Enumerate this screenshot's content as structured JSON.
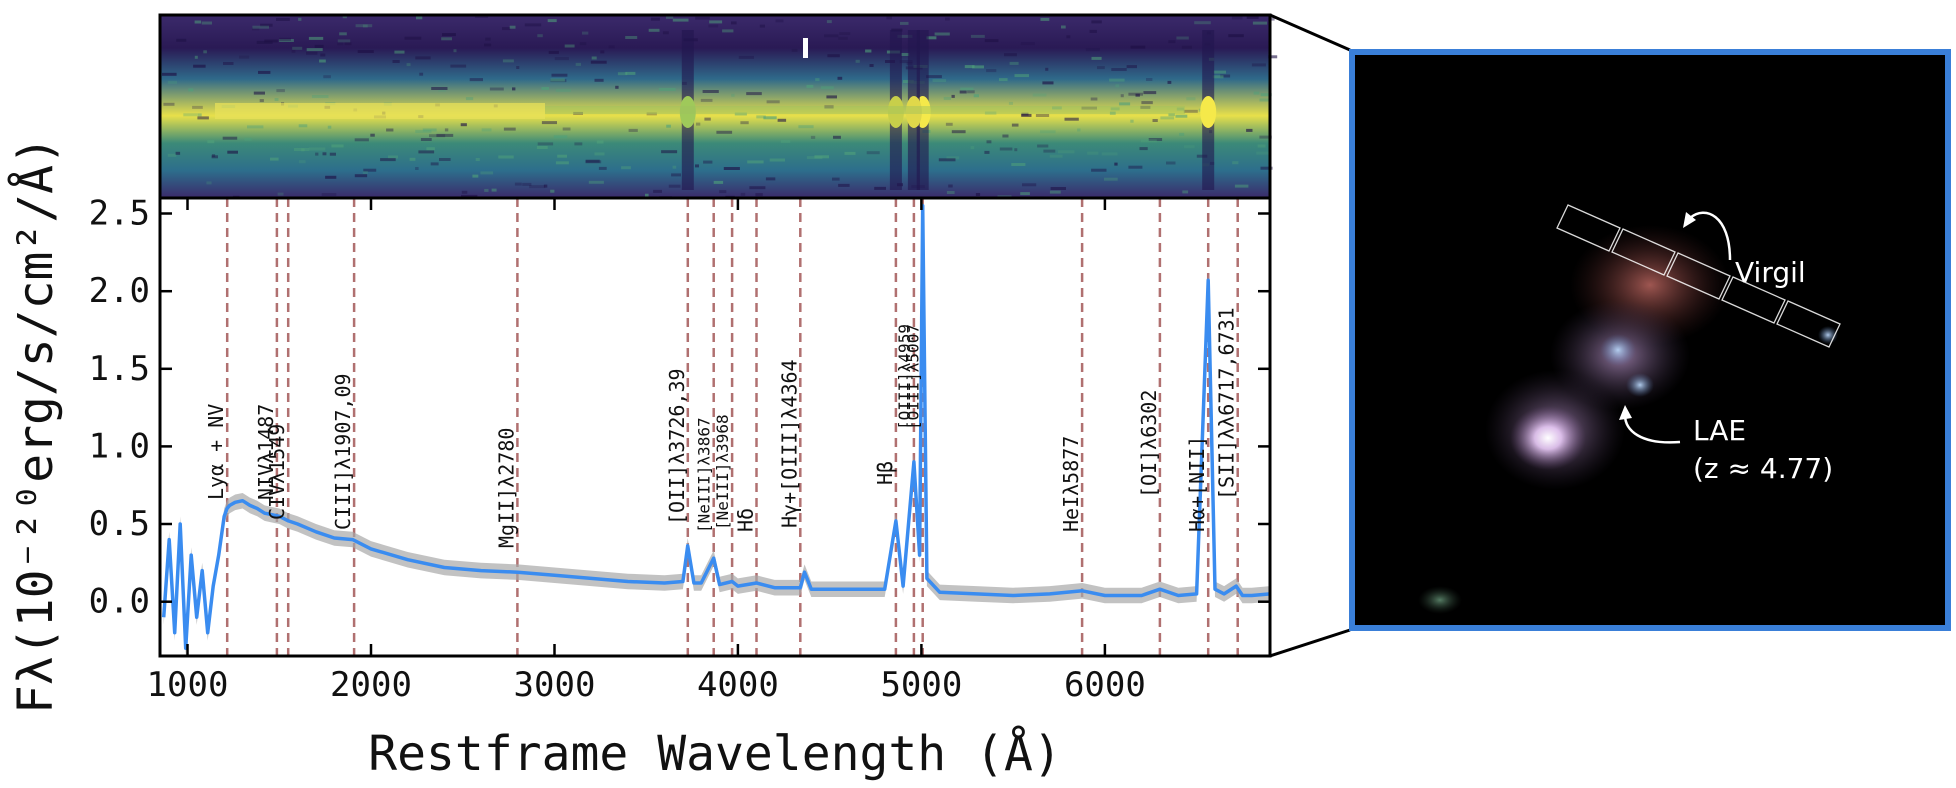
{
  "chart_data": {
    "type": "line",
    "title": "",
    "xlabel": "Restframe Wavelength (Å)",
    "ylabel": "Fλ(10⁻²⁰erg/s/cm²/Å)",
    "xlim": [
      850,
      6900
    ],
    "ylim": [
      -0.35,
      2.6
    ],
    "xticks": [
      1000,
      2000,
      3000,
      4000,
      5000,
      6000
    ],
    "yticks": [
      0.0,
      0.5,
      1.0,
      1.5,
      2.0,
      2.5
    ],
    "xtick_labels": [
      "1000",
      "2000",
      "3000",
      "4000",
      "5000",
      "6000"
    ],
    "ytick_labels": [
      "0.0",
      "0.5",
      "1.0",
      "1.5",
      "2.0",
      "2.5"
    ],
    "series": [
      {
        "color": "#3a8cf0",
        "x": [
          870,
          900,
          930,
          960,
          990,
          1020,
          1050,
          1080,
          1110,
          1140,
          1170,
          1200,
          1215,
          1230,
          1260,
          1300,
          1340,
          1380,
          1420,
          1460,
          1500,
          1550,
          1600,
          1700,
          1800,
          1900,
          2000,
          2200,
          2400,
          2600,
          2800,
          3000,
          3200,
          3400,
          3600,
          3700,
          3726,
          3760,
          3800,
          3868,
          3900,
          3968,
          4000,
          4101,
          4200,
          4340,
          4363,
          4400,
          4600,
          4800,
          4861,
          4900,
          4959,
          4990,
          5007,
          5030,
          5100,
          5300,
          5500,
          5700,
          5877,
          6000,
          6200,
          6300,
          6400,
          6500,
          6563,
          6600,
          6650,
          6716,
          6750,
          6800,
          6900
        ],
        "y": [
          -0.1,
          0.4,
          -0.2,
          0.5,
          -0.3,
          0.3,
          -0.1,
          0.2,
          -0.2,
          0.1,
          0.3,
          0.55,
          0.6,
          0.62,
          0.64,
          0.65,
          0.62,
          0.6,
          0.57,
          0.56,
          0.55,
          0.52,
          0.5,
          0.45,
          0.41,
          0.4,
          0.34,
          0.27,
          0.22,
          0.2,
          0.19,
          0.17,
          0.15,
          0.13,
          0.12,
          0.13,
          0.36,
          0.12,
          0.12,
          0.28,
          0.11,
          0.13,
          0.1,
          0.12,
          0.09,
          0.09,
          0.19,
          0.08,
          0.08,
          0.08,
          0.52,
          0.1,
          0.9,
          0.3,
          2.55,
          0.15,
          0.06,
          0.05,
          0.04,
          0.05,
          0.07,
          0.04,
          0.04,
          0.08,
          0.04,
          0.05,
          2.07,
          0.08,
          0.05,
          0.1,
          0.04,
          0.04,
          0.05
        ]
      }
    ],
    "emission_lines": [
      {
        "x": 1216,
        "label": "Lyα + NV"
      },
      {
        "x": 1487,
        "label": "NIVλ1487"
      },
      {
        "x": 1549,
        "label": "CIVλ1549"
      },
      {
        "x": 1908,
        "label": "CIII]λ1907,09"
      },
      {
        "x": 2798,
        "label": "MgII]λ2780"
      },
      {
        "x": 3727,
        "label": "[OII]λ3726,39"
      },
      {
        "x": 3868,
        "label": "[NeIII]λ3867"
      },
      {
        "x": 3968,
        "label": "[NeIII]λ3968"
      },
      {
        "x": 4101,
        "label": "Hδ"
      },
      {
        "x": 4340,
        "label": "Hγ+[OIII]λ4364"
      },
      {
        "x": 4861,
        "label": "Hβ"
      },
      {
        "x": 4959,
        "label": "[OIII]λ4959"
      },
      {
        "x": 5007,
        "label": "[OIII]λ5007"
      },
      {
        "x": 5876,
        "label": "HeIλ5877"
      },
      {
        "x": 6300,
        "label": "[OI]λ6302"
      },
      {
        "x": 6563,
        "label": "Hα+[NII]"
      },
      {
        "x": 6724,
        "label": "[SII]λλ6717,6731"
      }
    ],
    "line_color": "#b07070"
  },
  "image_panel": {
    "labels": {
      "virgil": "Virgil",
      "lae": "LAE",
      "redshift": "(z ≈ 4.77)"
    },
    "frame_color": "#3a7fd8"
  }
}
